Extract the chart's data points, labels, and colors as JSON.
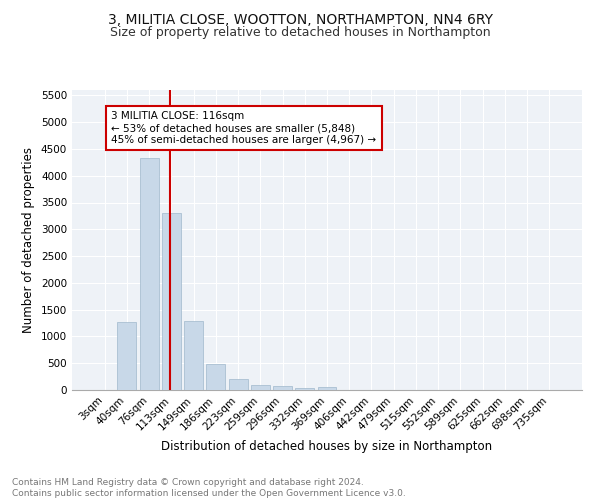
{
  "title": "3, MILITIA CLOSE, WOOTTON, NORTHAMPTON, NN4 6RY",
  "subtitle": "Size of property relative to detached houses in Northampton",
  "xlabel": "Distribution of detached houses by size in Northampton",
  "ylabel": "Number of detached properties",
  "bar_labels": [
    "3sqm",
    "40sqm",
    "76sqm",
    "113sqm",
    "149sqm",
    "186sqm",
    "223sqm",
    "259sqm",
    "296sqm",
    "332sqm",
    "369sqm",
    "406sqm",
    "442sqm",
    "479sqm",
    "515sqm",
    "552sqm",
    "589sqm",
    "625sqm",
    "662sqm",
    "698sqm",
    "735sqm"
  ],
  "bar_values": [
    0,
    1270,
    4330,
    3300,
    1280,
    480,
    200,
    95,
    75,
    45,
    50,
    0,
    0,
    0,
    0,
    0,
    0,
    0,
    0,
    0,
    0
  ],
  "bar_color": "#c8d8e8",
  "bar_edge_color": "#a0b8cc",
  "vline_color": "#cc0000",
  "annotation_text": "3 MILITIA CLOSE: 116sqm\n← 53% of detached houses are smaller (5,848)\n45% of semi-detached houses are larger (4,967) →",
  "annotation_box_color": "#ffffff",
  "annotation_box_edge_color": "#cc0000",
  "ylim": [
    0,
    5600
  ],
  "yticks": [
    0,
    500,
    1000,
    1500,
    2000,
    2500,
    3000,
    3500,
    4000,
    4500,
    5000,
    5500
  ],
  "background_color": "#eef2f7",
  "footer_text": "Contains HM Land Registry data © Crown copyright and database right 2024.\nContains public sector information licensed under the Open Government Licence v3.0.",
  "title_fontsize": 10,
  "subtitle_fontsize": 9,
  "xlabel_fontsize": 8.5,
  "ylabel_fontsize": 8.5,
  "tick_fontsize": 7.5,
  "footer_fontsize": 6.5
}
